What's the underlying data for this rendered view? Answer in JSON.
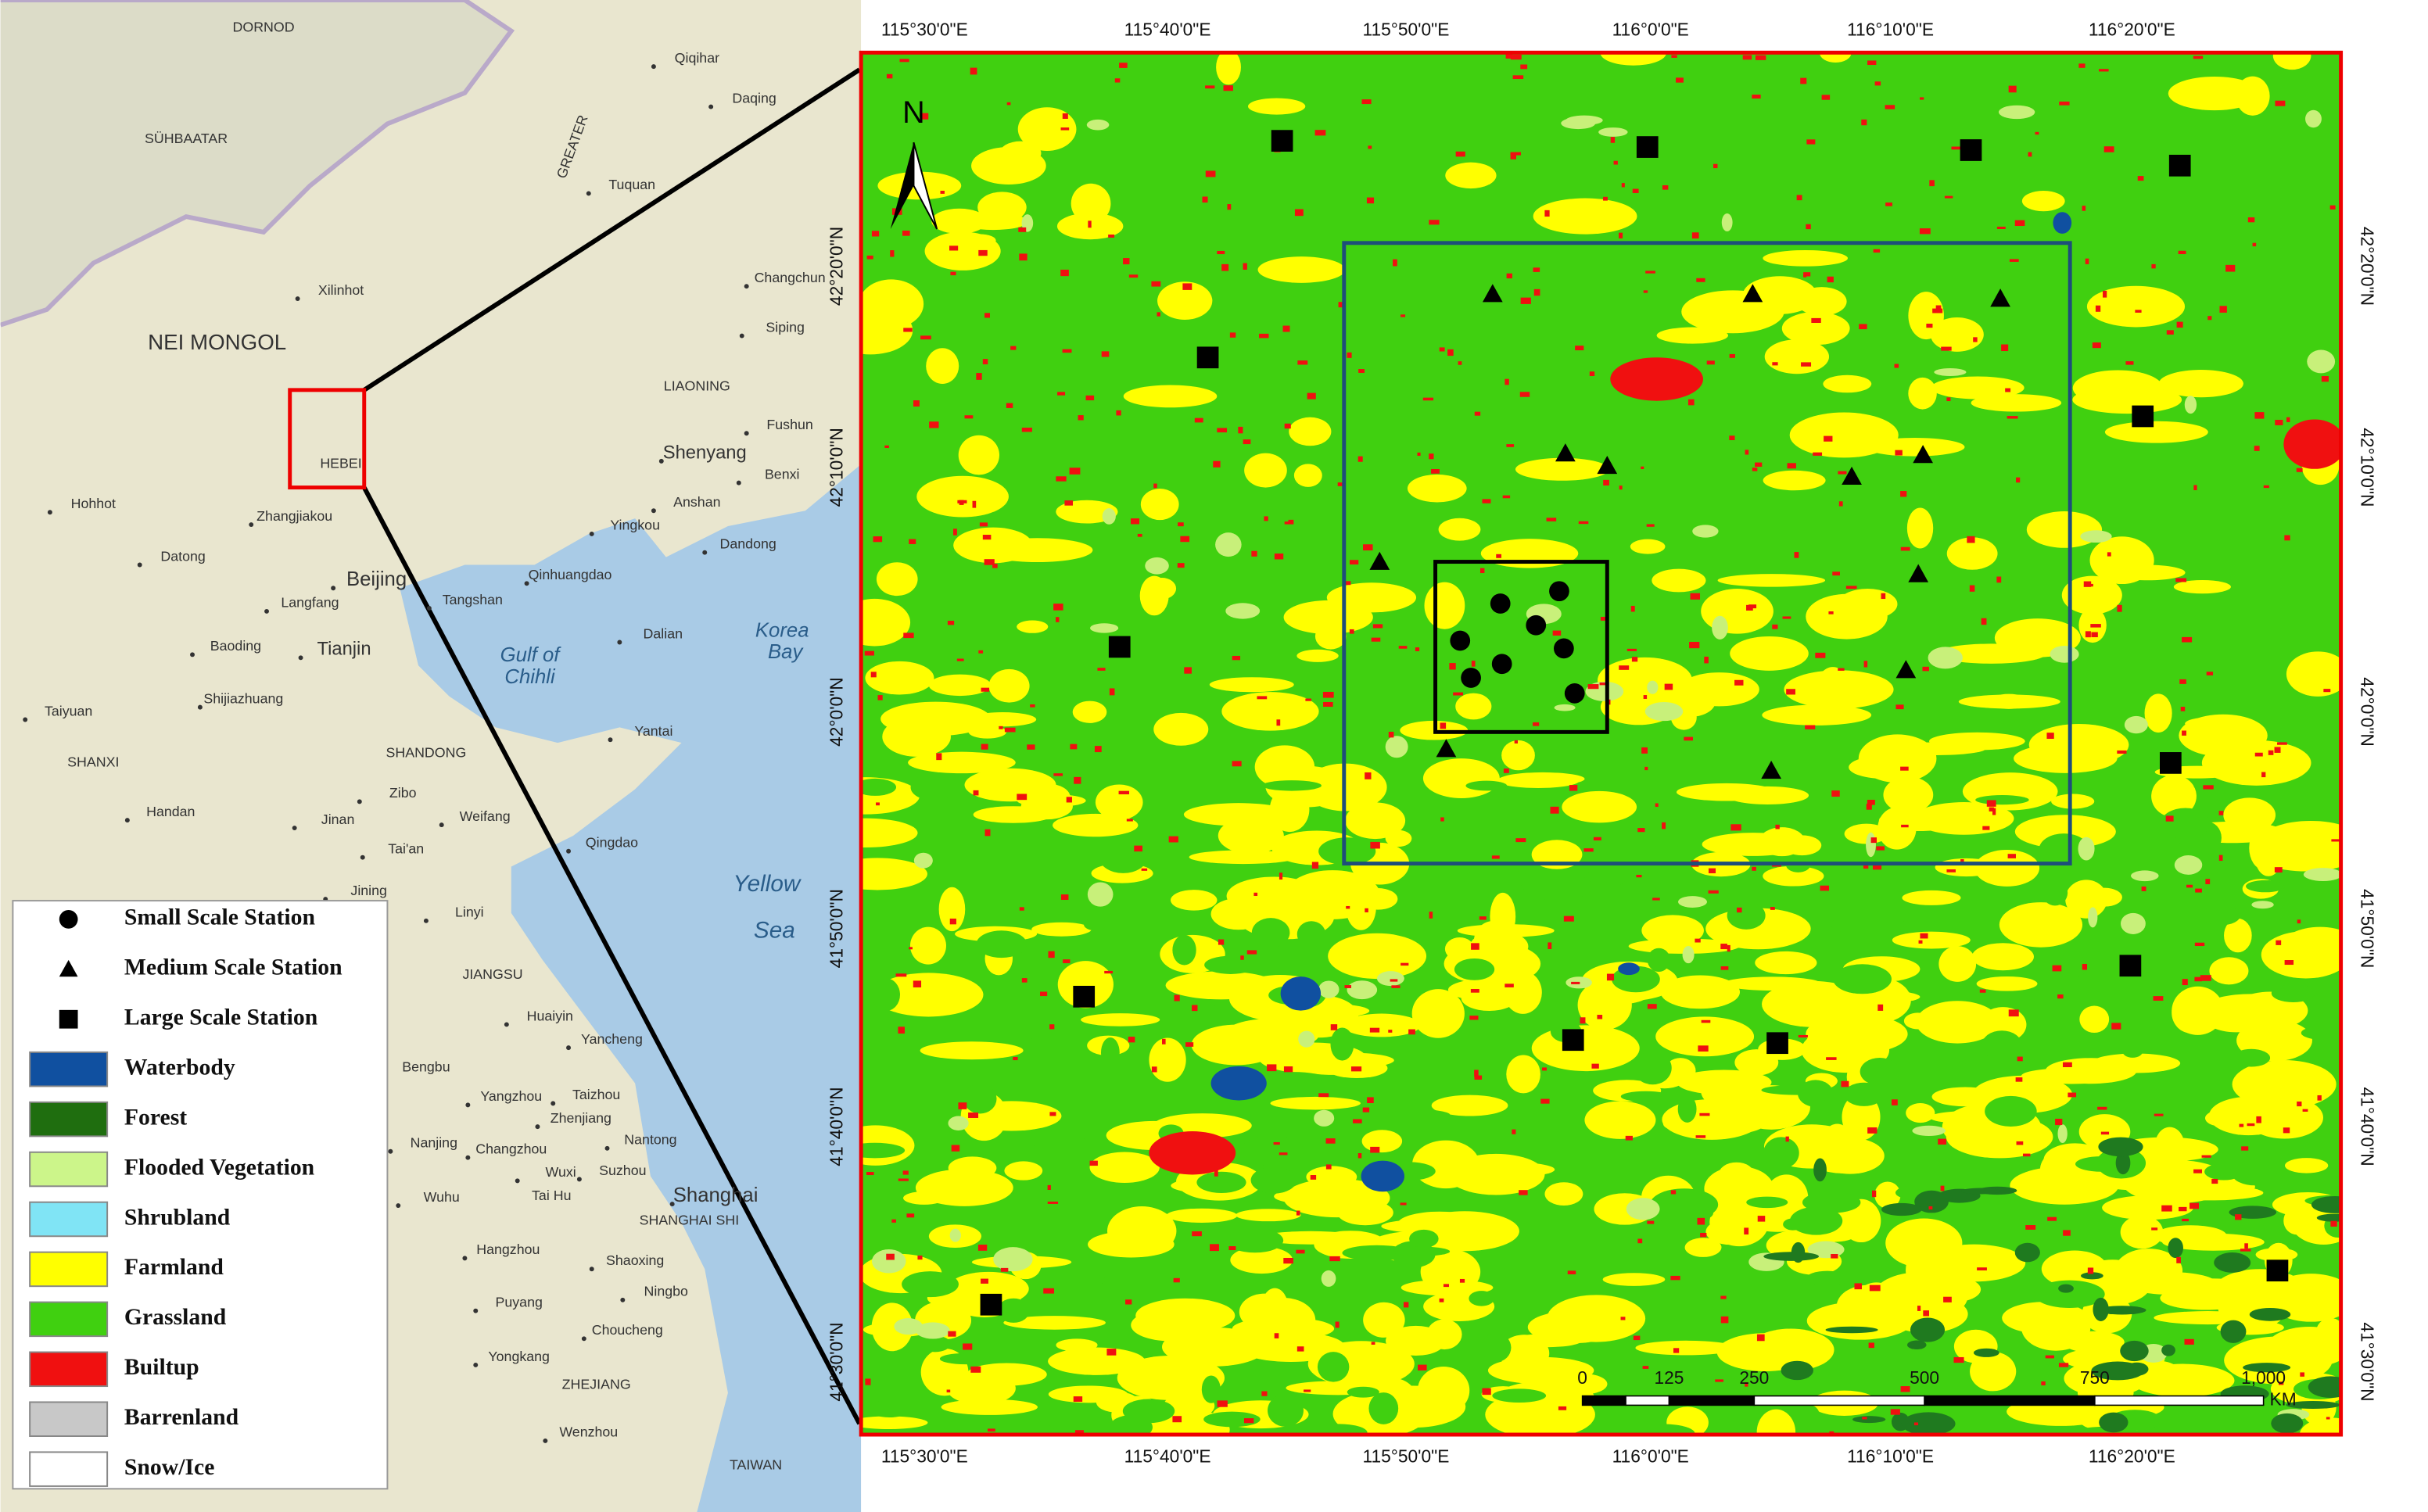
{
  "inset_map": {
    "places": [
      "DORNOD",
      "SÜHBAATAR",
      "NEI MONGOL",
      "Xilinhot",
      "Qiqihar",
      "Daqing",
      "Tuquan",
      "Changchun",
      "Siping",
      "LIAONING",
      "Fushun",
      "Shenyang",
      "Benxi",
      "Anshan",
      "Dandong",
      "Yingkou",
      "Dalian",
      "Korea",
      "Bay",
      "Hohhot",
      "Zhangjiakou",
      "Datong",
      "Beijing",
      "Langfang",
      "Tianjin",
      "Tangshan",
      "Qinhuangdao",
      "Baoding",
      "Shijiazhuang",
      "Taiyuan",
      "SHANXI",
      "Gulf of",
      "Chihli",
      "Yantai",
      "SHANDONG",
      "Zibo",
      "Weifang",
      "Qingdao",
      "Jinan",
      "Handan",
      "Tai'an",
      "Jining",
      "Linyi",
      "Yellow",
      "Sea",
      "GREATER",
      "HEBEI",
      "JIANGSU",
      "Huaiyin",
      "Yancheng",
      "Bengbu",
      "Taizhou",
      "Yangzhou",
      "Zhenjiang",
      "Nantong",
      "Nanjing",
      "Changzhou",
      "Suzhou",
      "Wuxi",
      "Wuhu",
      "Tai Hu",
      "Shanghai",
      "SHANGHAI SHI",
      "Hangzhou",
      "Shaoxing",
      "Ningbo",
      "Puyang",
      "Choucheng",
      "Yongkang",
      "ZHEJIANG",
      "Wenzhou",
      "TAIWAN"
    ]
  },
  "study_area": {
    "north": "N",
    "lon_labels": [
      "115°30'0\"E",
      "115°40'0\"E",
      "115°50'0\"E",
      "116°0'0\"E",
      "116°10'0\"E",
      "116°20'0\"E"
    ],
    "lat_labels": [
      "42°20'0\"N",
      "42°10'0\"N",
      "42°0'0\"N",
      "41°50'0\"N",
      "41°40'0\"N",
      "41°30'0\"N"
    ],
    "scale_bar": {
      "ticks": [
        "0",
        "125",
        "250",
        "500",
        "750",
        "1,000"
      ],
      "unit": "KM"
    }
  },
  "legend": {
    "items": [
      "Small Scale Station",
      "Medium Scale Station",
      "Large Scale Station",
      "Waterbody",
      "Forest",
      "Flooded Vegetation",
      "Shrubland",
      "Farmland",
      "Grassland",
      "Builtup",
      "Barrenland",
      "Snow/Ice"
    ]
  }
}
